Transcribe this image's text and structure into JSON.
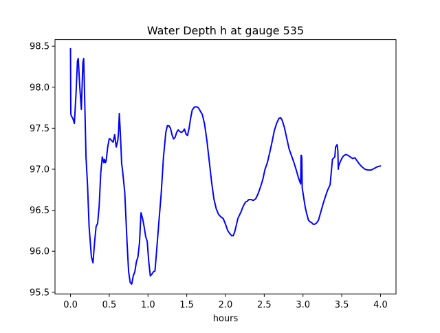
{
  "chart_data": {
    "type": "line",
    "title": "Water Depth h at gauge 535",
    "xlabel": "hours",
    "ylabel": "",
    "xlim": [
      -0.2,
      4.2
    ],
    "ylim": [
      95.48,
      98.58
    ],
    "grid": false,
    "x_ticks": [
      {
        "value": 0.0,
        "label": "0.0"
      },
      {
        "value": 0.5,
        "label": "0.5"
      },
      {
        "value": 1.0,
        "label": "1.0"
      },
      {
        "value": 1.5,
        "label": "1.5"
      },
      {
        "value": 2.0,
        "label": "2.0"
      },
      {
        "value": 2.5,
        "label": "2.5"
      },
      {
        "value": 3.0,
        "label": "3.0"
      },
      {
        "value": 3.5,
        "label": "3.5"
      },
      {
        "value": 4.0,
        "label": "4.0"
      }
    ],
    "y_ticks": [
      {
        "value": 95.5,
        "label": "95.5"
      },
      {
        "value": 96.0,
        "label": "96.0"
      },
      {
        "value": 96.5,
        "label": "96.5"
      },
      {
        "value": 97.0,
        "label": "97.0"
      },
      {
        "value": 97.5,
        "label": "97.5"
      },
      {
        "value": 98.0,
        "label": "98.0"
      },
      {
        "value": 98.5,
        "label": "98.5"
      }
    ],
    "series": [
      {
        "color": "#0000ff",
        "x": [
          0.0,
          0.004,
          0.01,
          0.03,
          0.05,
          0.07,
          0.09,
          0.1,
          0.12,
          0.14,
          0.16,
          0.17,
          0.18,
          0.2,
          0.22,
          0.24,
          0.27,
          0.29,
          0.31,
          0.33,
          0.35,
          0.37,
          0.39,
          0.41,
          0.43,
          0.44,
          0.45,
          0.46,
          0.48,
          0.5,
          0.51,
          0.53,
          0.55,
          0.57,
          0.59,
          0.61,
          0.62,
          0.63,
          0.64,
          0.65,
          0.66,
          0.67,
          0.7,
          0.73,
          0.75,
          0.77,
          0.79,
          0.81,
          0.83,
          0.85,
          0.87,
          0.89,
          0.91,
          0.93,
          0.95,
          0.97,
          0.99,
          1.01,
          1.03,
          1.05,
          1.07,
          1.09,
          1.11,
          1.14,
          1.17,
          1.2,
          1.23,
          1.25,
          1.27,
          1.29,
          1.31,
          1.33,
          1.35,
          1.37,
          1.39,
          1.41,
          1.43,
          1.45,
          1.47,
          1.49,
          1.51,
          1.53,
          1.55,
          1.57,
          1.6,
          1.63,
          1.65,
          1.68,
          1.7,
          1.73,
          1.76,
          1.79,
          1.82,
          1.85,
          1.88,
          1.91,
          1.94,
          1.97,
          2.0,
          2.03,
          2.06,
          2.08,
          2.1,
          2.12,
          2.14,
          2.16,
          2.18,
          2.2,
          2.22,
          2.24,
          2.26,
          2.28,
          2.3,
          2.33,
          2.36,
          2.39,
          2.42,
          2.45,
          2.48,
          2.51,
          2.54,
          2.57,
          2.6,
          2.63,
          2.66,
          2.69,
          2.71,
          2.73,
          2.76,
          2.79,
          2.82,
          2.85,
          2.88,
          2.91,
          2.94,
          2.97,
          2.975,
          2.98,
          2.985,
          2.99,
          3.01,
          3.03,
          3.05,
          3.07,
          3.09,
          3.11,
          3.13,
          3.15,
          3.17,
          3.2,
          3.23,
          3.26,
          3.29,
          3.32,
          3.35,
          3.38,
          3.41,
          3.415,
          3.42,
          3.44,
          3.45,
          3.455,
          3.46,
          3.48,
          3.5,
          3.52,
          3.55,
          3.58,
          3.61,
          3.64,
          3.67,
          3.7,
          3.73,
          3.76,
          3.8,
          3.84,
          3.88,
          3.92,
          3.96,
          4.0
        ],
        "values": [
          98.47,
          97.68,
          97.65,
          97.62,
          97.56,
          97.9,
          98.32,
          98.35,
          98.0,
          97.73,
          98.3,
          98.35,
          97.98,
          97.15,
          96.8,
          96.3,
          95.93,
          95.86,
          96.1,
          96.3,
          96.34,
          96.55,
          96.95,
          97.15,
          97.08,
          97.12,
          97.08,
          97.1,
          97.27,
          97.37,
          97.37,
          97.35,
          97.33,
          97.42,
          97.27,
          97.35,
          97.45,
          97.68,
          97.5,
          97.3,
          97.07,
          97.0,
          96.72,
          96.1,
          95.75,
          95.62,
          95.6,
          95.7,
          95.75,
          95.87,
          95.93,
          96.1,
          96.47,
          96.4,
          96.3,
          96.18,
          96.12,
          95.87,
          95.7,
          95.72,
          95.75,
          95.76,
          95.99,
          96.35,
          96.7,
          97.15,
          97.45,
          97.53,
          97.53,
          97.5,
          97.42,
          97.37,
          97.39,
          97.45,
          97.48,
          97.46,
          97.45,
          97.46,
          97.49,
          97.43,
          97.41,
          97.5,
          97.62,
          97.72,
          97.76,
          97.76,
          97.75,
          97.7,
          97.67,
          97.55,
          97.35,
          97.1,
          96.85,
          96.64,
          96.52,
          96.45,
          96.42,
          96.4,
          96.33,
          96.25,
          96.21,
          96.19,
          96.19,
          96.24,
          96.32,
          96.4,
          96.44,
          96.48,
          96.53,
          96.57,
          96.6,
          96.61,
          96.63,
          96.63,
          96.62,
          96.64,
          96.7,
          96.78,
          96.87,
          97.0,
          97.08,
          97.2,
          97.33,
          97.47,
          97.56,
          97.62,
          97.63,
          97.6,
          97.51,
          97.38,
          97.25,
          97.17,
          97.09,
          97.0,
          96.9,
          96.82,
          97.17,
          97.17,
          97.13,
          96.77,
          96.65,
          96.53,
          96.45,
          96.38,
          96.36,
          96.35,
          96.33,
          96.33,
          96.34,
          96.38,
          96.48,
          96.58,
          96.67,
          96.75,
          96.81,
          97.12,
          97.15,
          97.2,
          97.27,
          97.3,
          97.22,
          97.0,
          97.04,
          97.09,
          97.13,
          97.16,
          97.18,
          97.17,
          97.15,
          97.13,
          97.14,
          97.1,
          97.06,
          97.03,
          97.0,
          96.99,
          96.99,
          97.01,
          97.03,
          97.04
        ]
      }
    ]
  }
}
